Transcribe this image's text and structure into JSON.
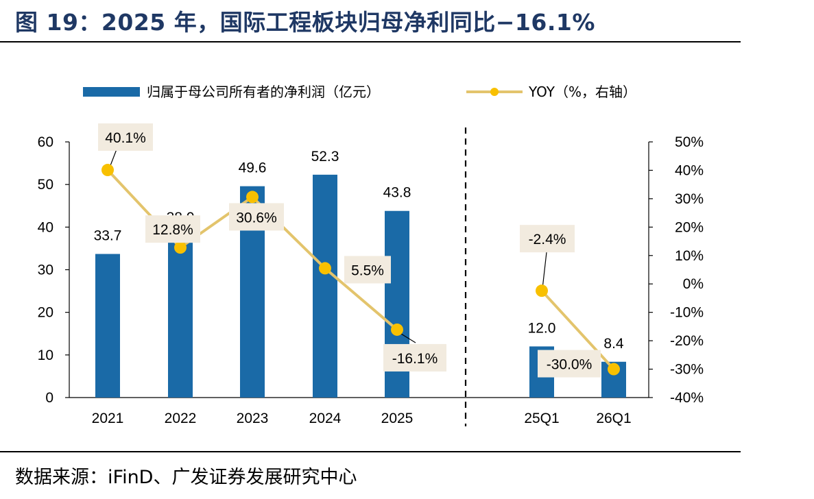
{
  "title": "图 19：2025 年，国际工程板块归母净利同比−16.1%",
  "source": "数据来源：iFinD、广发证券发展研究中心",
  "colors": {
    "bar": "#1a6aa7",
    "line": "#e3c46c",
    "marker": "#f8c000",
    "label_bg": "#f2ebdf",
    "title": "#1f3864"
  },
  "chart_data": {
    "type": "bar",
    "categories": [
      "2021",
      "2022",
      "2023",
      "2024",
      "2025",
      "25Q1",
      "26Q1"
    ],
    "series": [
      {
        "name": "归属于母公司所有者的净利润（亿元）",
        "type": "bar",
        "axis": "left",
        "values": [
          33.7,
          38.0,
          49.6,
          52.3,
          43.8,
          12.0,
          8.4
        ],
        "labels": [
          "33.7",
          "38.0",
          "49.6",
          "52.3",
          "43.8",
          "12.0",
          "8.4"
        ]
      },
      {
        "name": "YOY（%，右轴）",
        "type": "line",
        "axis": "right",
        "values": [
          40.1,
          12.8,
          30.6,
          5.5,
          -16.1,
          -2.4,
          -30.0
        ],
        "labels": [
          "40.1%",
          "12.8%",
          "30.6%",
          "5.5%",
          "-16.1%",
          "-2.4%",
          "-30.0%"
        ]
      }
    ],
    "line_segments": [
      [
        0,
        4
      ],
      [
        5,
        6
      ]
    ],
    "left_axis": {
      "ylim": [
        0,
        60
      ],
      "ticks": [
        "0",
        "10",
        "20",
        "30",
        "40",
        "50",
        "60"
      ]
    },
    "right_axis": {
      "ylim": [
        -40,
        50
      ],
      "ticks": [
        "-40%",
        "-30%",
        "-20%",
        "-10%",
        "0%",
        "10%",
        "20%",
        "30%",
        "40%",
        "50%"
      ]
    },
    "legend_position": "top",
    "grid": false,
    "separator": "dashed vertical line between annual and quarterly data"
  }
}
